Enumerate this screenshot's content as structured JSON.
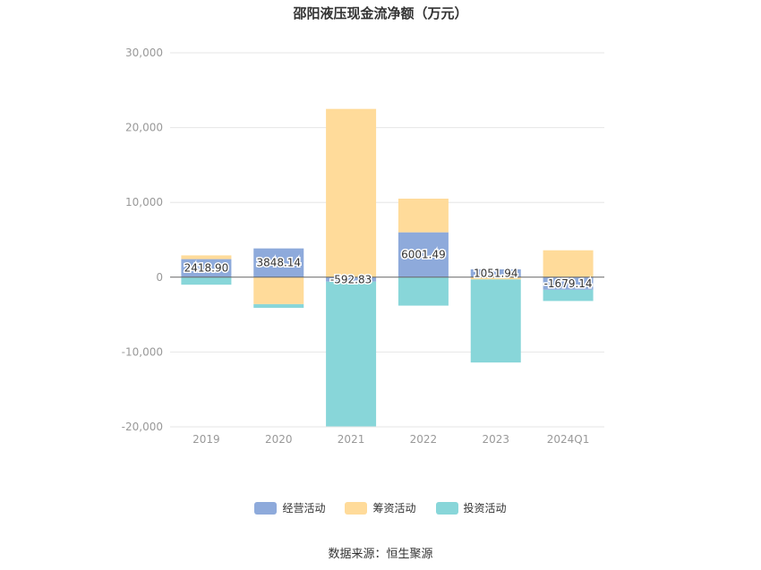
{
  "chart_data": {
    "type": "bar",
    "title": "邵阳液压现金流净额（万元）",
    "categories": [
      "2019",
      "2020",
      "2021",
      "2022",
      "2023",
      "2024Q1"
    ],
    "series": [
      {
        "name": "经营活动",
        "color": "#8eaadb",
        "values": [
          2418.9,
          3848.14,
          -592.83,
          6001.49,
          1051.94,
          -1679.14
        ]
      },
      {
        "name": "筹资活动",
        "color": "#ffdb9a",
        "values": [
          500,
          -3600,
          22500,
          4500,
          -300,
          3600
        ]
      },
      {
        "name": "投资活动",
        "color": "#88d6d9",
        "values": [
          -1000,
          -500,
          -19400,
          -3800,
          -11100,
          -1500
        ]
      }
    ],
    "data_labels": [
      "2418.90",
      "3848.14",
      "-592.83",
      "6001.49",
      "1051.94",
      "-1679.14"
    ],
    "y_ticks": [
      "30,000",
      "20,000",
      "10,000",
      "0",
      "-10,000",
      "-20,000"
    ],
    "y_tick_values": [
      30000,
      20000,
      10000,
      0,
      -10000,
      -20000
    ],
    "ylim": [
      -20000,
      30000
    ],
    "grid": true,
    "legend_position": "bottom",
    "xlabel": "",
    "ylabel": ""
  },
  "source": "数据来源：恒生聚源"
}
